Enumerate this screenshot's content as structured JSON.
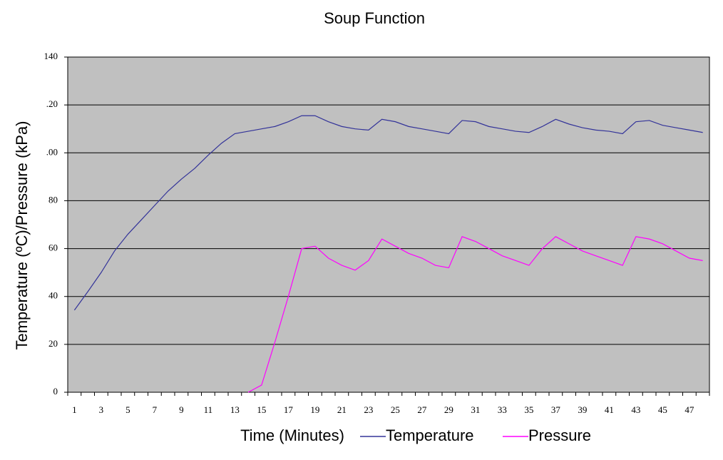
{
  "chart_data": {
    "type": "line",
    "title": "Soup Function",
    "xlabel": "Time (Minutes)",
    "ylabel": "Temperature (ºC)/Pressure (kPa)",
    "categories": [
      "1",
      null,
      "3",
      null,
      "5",
      null,
      "7",
      null,
      "9",
      null,
      "11",
      null,
      "13",
      null,
      "15",
      null,
      "17",
      null,
      "19",
      null,
      "21",
      null,
      "23",
      null,
      "25",
      null,
      "27",
      null,
      "29",
      null,
      "31",
      null,
      "33",
      null,
      "35",
      null,
      "37",
      null,
      "39",
      null,
      "41",
      null,
      "43",
      null,
      "45",
      null,
      "47",
      null
    ],
    "series": [
      {
        "name": "Temperature",
        "color": "#333399",
        "values": [
          34.3,
          42,
          50,
          59,
          66,
          72,
          78,
          84,
          89,
          93.5,
          99,
          104,
          108,
          109,
          110,
          111,
          113,
          115.5,
          115.5,
          113,
          111,
          110,
          109.5,
          114,
          113,
          111,
          110,
          109,
          108,
          113.5,
          113,
          111,
          110,
          109,
          108.5,
          111,
          114,
          112,
          110.5,
          109.5,
          109,
          108,
          113,
          113.5,
          111.5,
          110.5,
          109.5,
          108.5
        ]
      },
      {
        "name": "Pressure",
        "color": "#ff00ff",
        "values": [
          null,
          null,
          null,
          null,
          null,
          null,
          null,
          null,
          null,
          null,
          null,
          null,
          null,
          0,
          3,
          21,
          40,
          60,
          61,
          56,
          53,
          51,
          55,
          64,
          61,
          58,
          56,
          53,
          52,
          65,
          63,
          60,
          57,
          55,
          53,
          60,
          65,
          62,
          59,
          57,
          55,
          53,
          65,
          64,
          62,
          59,
          56,
          55
        ]
      }
    ],
    "ylim": [
      0,
      140
    ],
    "yticks": [
      0,
      20,
      40,
      60,
      80,
      {
        "value": 100,
        "label": ".00"
      },
      {
        "value": 120,
        "label": ".20"
      },
      140
    ],
    "grid": true,
    "plot_background": "#c0c0c0"
  }
}
